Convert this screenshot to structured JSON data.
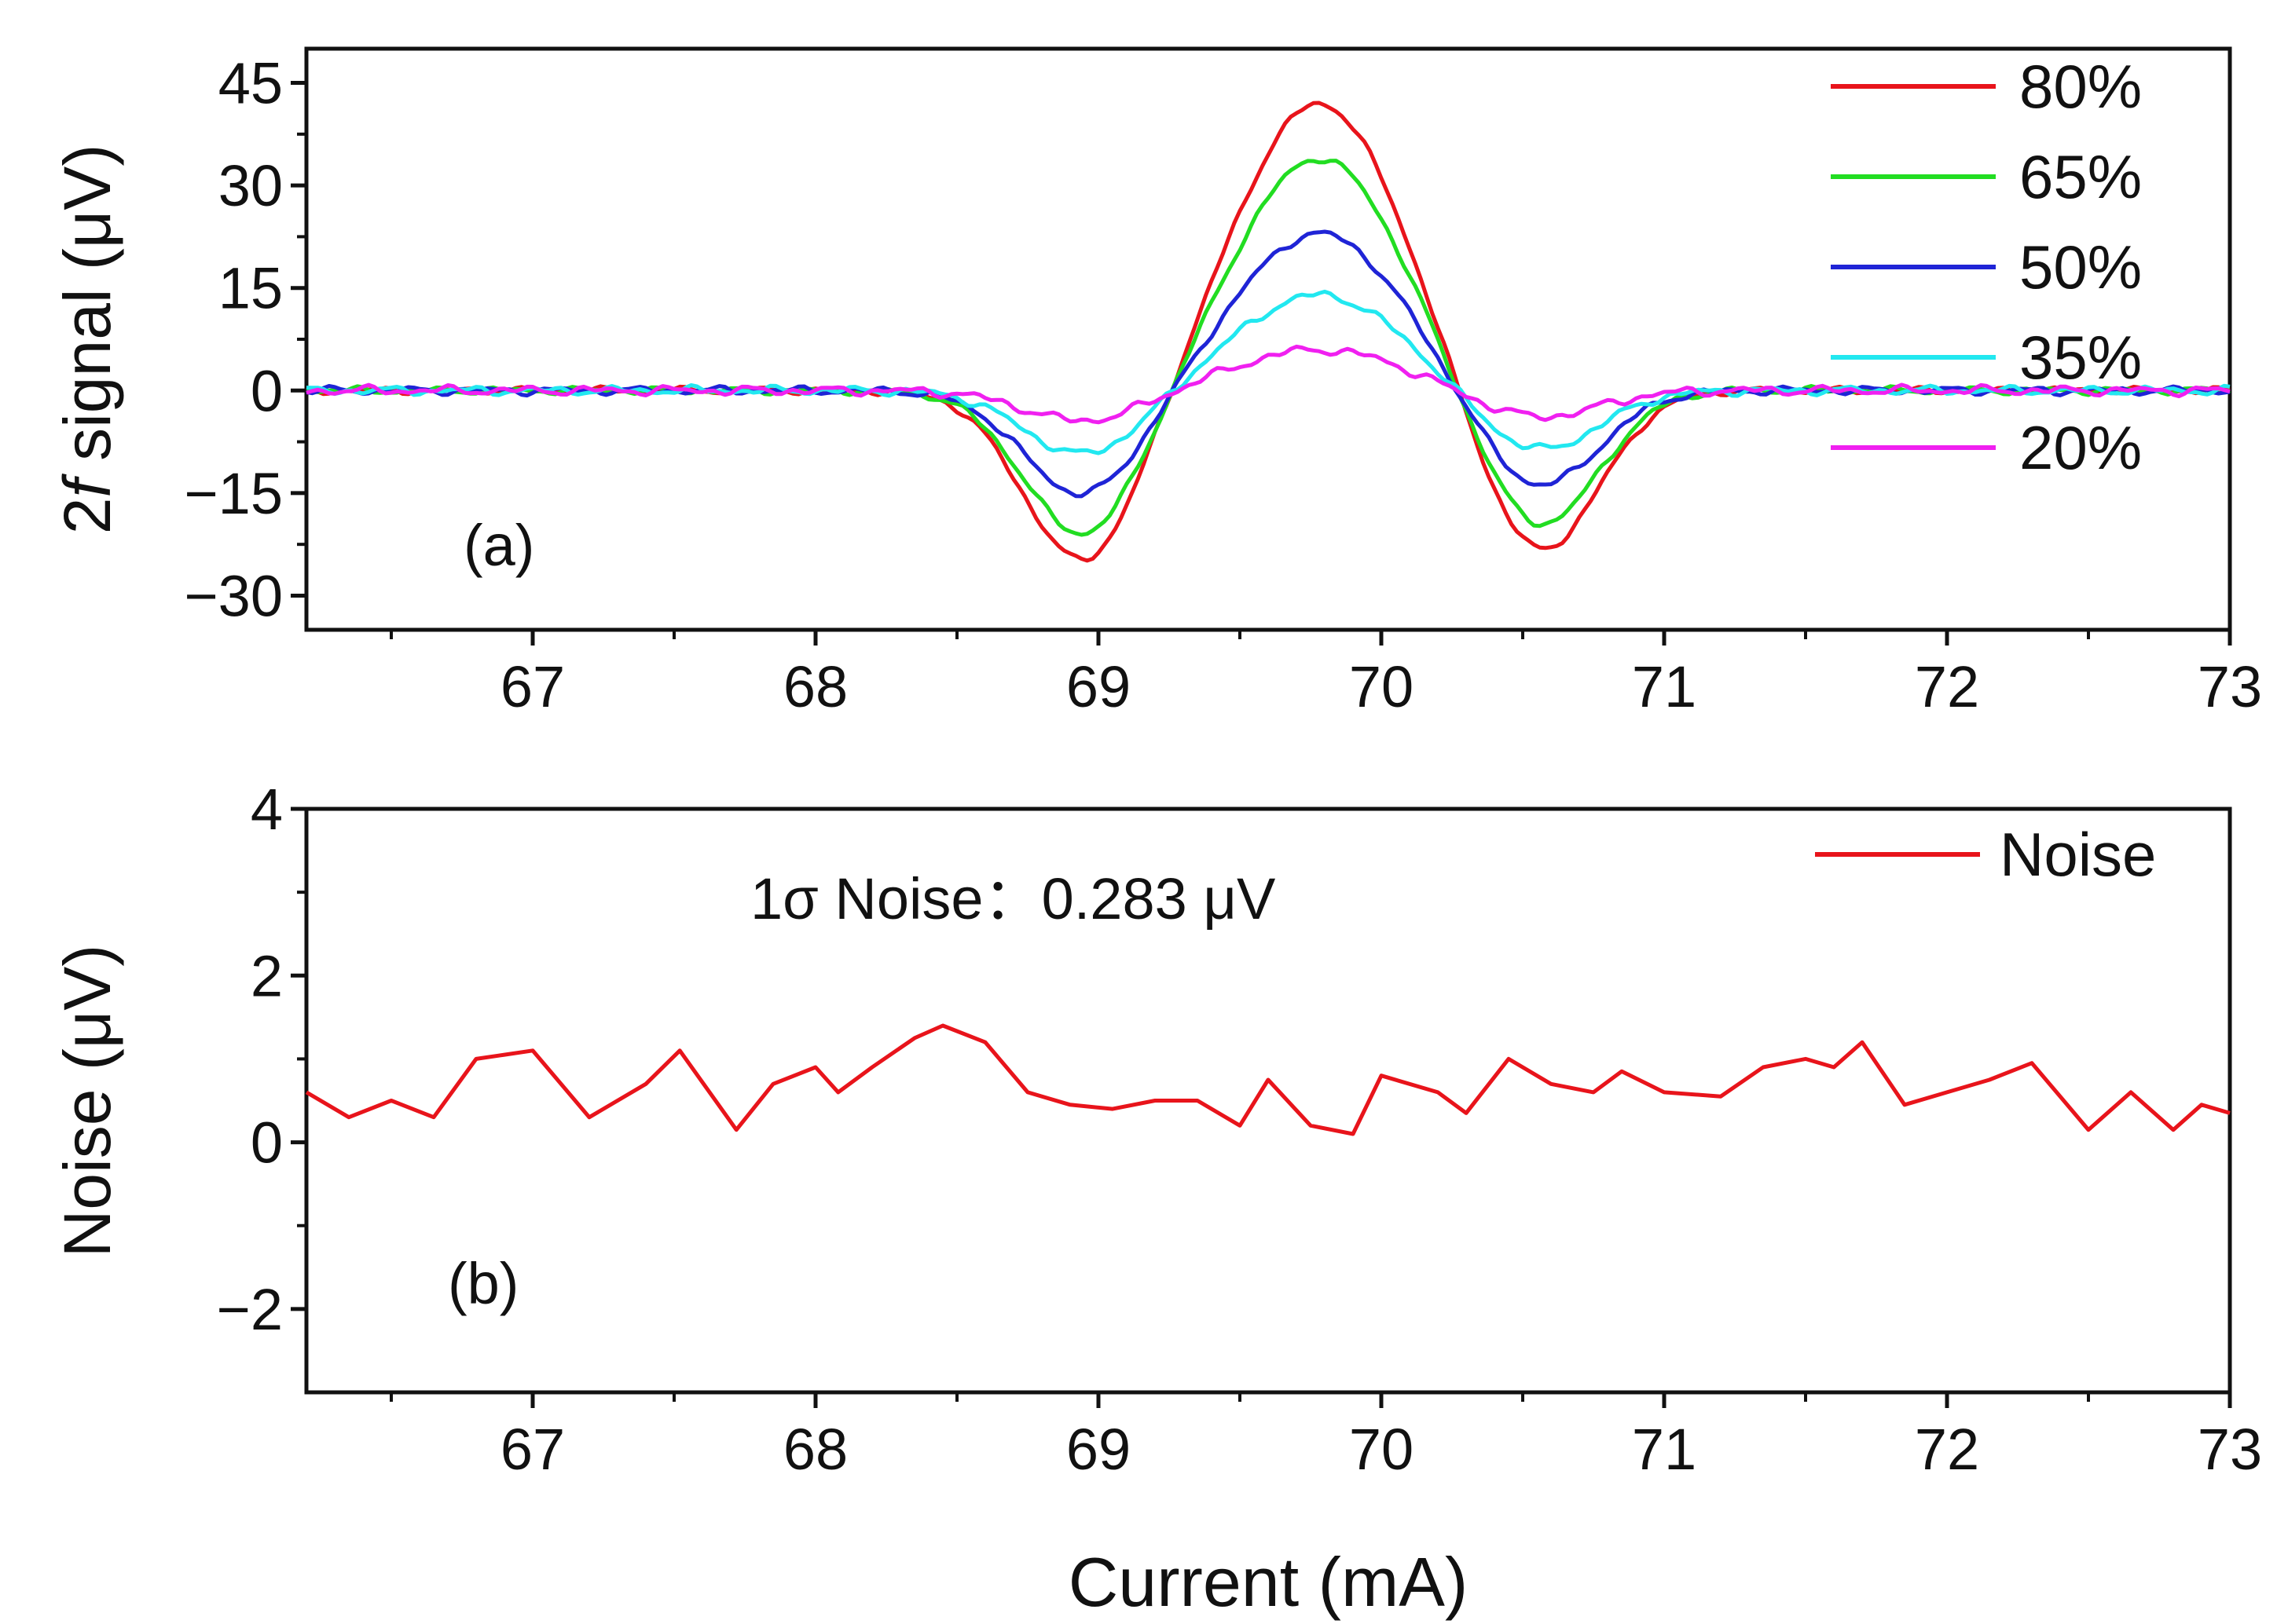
{
  "chart_data": [
    {
      "type": "line",
      "panel_label": "(a)",
      "ylabel_prefix": "2",
      "ylabel_italic": "f",
      "ylabel_rest": " signal (μV)",
      "xlim": [
        66.2,
        73
      ],
      "ylim": [
        -35,
        50
      ],
      "xticks": [
        67,
        68,
        69,
        70,
        71,
        72,
        73
      ],
      "yticks": [
        -30,
        -15,
        0,
        15,
        30,
        45
      ],
      "tick_labels_x": [
        "67",
        "68",
        "69",
        "70",
        "71",
        "72",
        "73"
      ],
      "tick_labels_y": [
        "−30",
        "−15",
        "0",
        "15",
        "30",
        "45"
      ],
      "legend_position": "top-right",
      "series": [
        {
          "name": "80%",
          "color": "#e8141b",
          "peak": 42,
          "left_trough": -25.5,
          "right_trough": -24.5
        },
        {
          "name": "65%",
          "color": "#22dd22",
          "peak": 34,
          "left_trough": -21.5,
          "right_trough": -20.5
        },
        {
          "name": "50%",
          "color": "#1f24d6",
          "peak": 23,
          "left_trough": -15.5,
          "right_trough": -14.5
        },
        {
          "name": "35%",
          "color": "#22e8f0",
          "peak": 14,
          "left_trough": -9.5,
          "right_trough": -9.0
        },
        {
          "name": "20%",
          "color": "#f020f0",
          "peak": 6,
          "left_trough": -4.5,
          "right_trough": -4.0
        }
      ]
    },
    {
      "type": "line",
      "panel_label": "(b)",
      "ylabel": "Noise (μV)",
      "xlabel": "Current (mA)",
      "xlim": [
        66.2,
        73
      ],
      "ylim": [
        -3,
        4
      ],
      "xticks": [
        67,
        68,
        69,
        70,
        71,
        72,
        73
      ],
      "yticks": [
        -2,
        0,
        2,
        4
      ],
      "tick_labels_x": [
        "67",
        "68",
        "69",
        "70",
        "71",
        "72",
        "73"
      ],
      "tick_labels_y": [
        "−2",
        "0",
        "2",
        "4"
      ],
      "annotation": "1σ Noise：0.283 μV",
      "legend_position": "top-right",
      "series": [
        {
          "name": "Noise",
          "color": "#e8141b",
          "x": [
            66.2,
            66.35,
            66.5,
            66.65,
            66.8,
            66.9,
            67.0,
            67.2,
            67.4,
            67.52,
            67.72,
            67.85,
            68.0,
            68.08,
            68.2,
            68.35,
            68.45,
            68.6,
            68.75,
            68.9,
            69.05,
            69.2,
            69.35,
            69.5,
            69.6,
            69.75,
            69.9,
            70.0,
            70.2,
            70.3,
            70.45,
            70.6,
            70.75,
            70.85,
            71.0,
            71.2,
            71.35,
            71.5,
            71.6,
            71.7,
            71.85,
            72.0,
            72.15,
            72.3,
            72.5,
            72.65,
            72.8,
            72.9,
            73.0
          ],
          "y": [
            0.6,
            0.3,
            0.5,
            0.3,
            1.0,
            1.05,
            1.1,
            0.3,
            0.7,
            1.1,
            0.15,
            0.7,
            0.9,
            0.6,
            0.9,
            1.25,
            1.4,
            1.2,
            0.6,
            0.45,
            0.4,
            0.5,
            0.5,
            0.2,
            0.75,
            0.2,
            0.1,
            0.8,
            0.6,
            0.35,
            1.0,
            0.7,
            0.6,
            0.85,
            0.6,
            0.55,
            0.9,
            1.0,
            0.9,
            1.2,
            0.45,
            0.6,
            0.75,
            0.95,
            0.15,
            0.6,
            0.15,
            0.45,
            0.35
          ]
        }
      ]
    }
  ]
}
